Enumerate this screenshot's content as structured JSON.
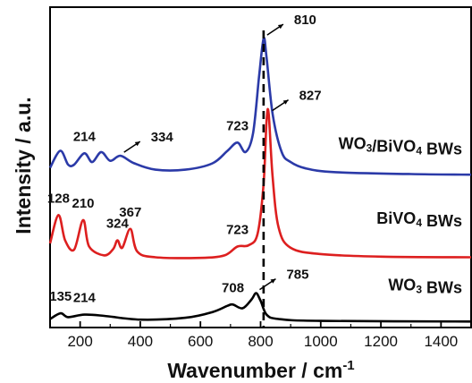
{
  "chart_data": {
    "type": "line",
    "xlabel": "Wavenumber / cm",
    "xlabel_sup": "-1",
    "ylabel": "Intensity / a.u.",
    "xlim": [
      100,
      1500
    ],
    "x_ticks": [
      200,
      400,
      600,
      800,
      1000,
      1200,
      1400
    ],
    "x_tick_labels": [
      "200",
      "400",
      "600",
      "800",
      "1000",
      "1200",
      "1400"
    ],
    "y_ticks_shown": false,
    "grid": false,
    "legend": "inline-labels-right",
    "reference_line": {
      "x": 810,
      "style": "dashed",
      "color": "#000000"
    },
    "series": [
      {
        "label_main": "WO",
        "label_sub": "3",
        "label_rest": " BWs",
        "color": "#000000",
        "baseline": 0.0,
        "scale": 1.0,
        "points": [
          [
            100,
            0.05
          ],
          [
            135,
            0.14
          ],
          [
            160,
            0.08
          ],
          [
            214,
            0.12
          ],
          [
            280,
            0.1
          ],
          [
            400,
            0.04
          ],
          [
            550,
            0.07
          ],
          [
            640,
            0.16
          ],
          [
            690,
            0.26
          ],
          [
            708,
            0.28
          ],
          [
            740,
            0.22
          ],
          [
            770,
            0.36
          ],
          [
            785,
            0.46
          ],
          [
            800,
            0.34
          ],
          [
            820,
            0.12
          ],
          [
            860,
            0.05
          ],
          [
            1000,
            0.02
          ],
          [
            1500,
            0.01
          ]
        ],
        "peak_labels": [
          {
            "x": 135,
            "text": "135"
          },
          {
            "x": 214,
            "text": "214"
          },
          {
            "x": 708,
            "text": "708"
          },
          {
            "x": 785,
            "text": "785",
            "arrow": true
          }
        ]
      },
      {
        "label_main": "BiVO",
        "label_sub": "4",
        "label_rest": " BWs",
        "color": "#dd1f1f",
        "baseline": 1.0,
        "scale": 1.0,
        "points": [
          [
            100,
            0.25
          ],
          [
            128,
            0.7
          ],
          [
            150,
            0.3
          ],
          [
            180,
            0.15
          ],
          [
            210,
            0.62
          ],
          [
            230,
            0.2
          ],
          [
            280,
            0.06
          ],
          [
            310,
            0.16
          ],
          [
            324,
            0.3
          ],
          [
            340,
            0.18
          ],
          [
            367,
            0.48
          ],
          [
            390,
            0.12
          ],
          [
            450,
            0.03
          ],
          [
            600,
            0.02
          ],
          [
            680,
            0.06
          ],
          [
            723,
            0.2
          ],
          [
            760,
            0.22
          ],
          [
            790,
            0.4
          ],
          [
            810,
            1.2
          ],
          [
            820,
            2.2
          ],
          [
            827,
            2.3
          ],
          [
            840,
            1.3
          ],
          [
            860,
            0.5
          ],
          [
            900,
            0.18
          ],
          [
            1000,
            0.08
          ],
          [
            1200,
            0.04
          ],
          [
            1500,
            0.03
          ]
        ],
        "peak_labels": [
          {
            "x": 128,
            "text": "128"
          },
          {
            "x": 210,
            "text": "210"
          },
          {
            "x": 324,
            "text": "324"
          },
          {
            "x": 367,
            "text": "367"
          },
          {
            "x": 723,
            "text": "723"
          },
          {
            "x": 827,
            "text": "827",
            "arrow": true
          }
        ]
      },
      {
        "label_main": "WO",
        "label_sub": "3",
        "label_mid": "/BiVO",
        "label_sub2": "4",
        "label_rest": " BWs",
        "color": "#2b3aa8",
        "baseline": 2.3,
        "scale": 1.0,
        "points": [
          [
            100,
            0.15
          ],
          [
            134,
            0.42
          ],
          [
            160,
            0.2
          ],
          [
            180,
            0.2
          ],
          [
            214,
            0.38
          ],
          [
            240,
            0.24
          ],
          [
            270,
            0.4
          ],
          [
            300,
            0.26
          ],
          [
            334,
            0.34
          ],
          [
            380,
            0.22
          ],
          [
            450,
            0.12
          ],
          [
            550,
            0.12
          ],
          [
            640,
            0.22
          ],
          [
            690,
            0.42
          ],
          [
            723,
            0.55
          ],
          [
            750,
            0.4
          ],
          [
            775,
            0.7
          ],
          [
            795,
            1.6
          ],
          [
            810,
            2.2
          ],
          [
            820,
            1.9
          ],
          [
            840,
            1.0
          ],
          [
            870,
            0.4
          ],
          [
            900,
            0.24
          ],
          [
            950,
            0.14
          ],
          [
            1050,
            0.08
          ],
          [
            1300,
            0.05
          ],
          [
            1500,
            0.04
          ]
        ],
        "peak_labels": [
          {
            "x": 214,
            "text": "214"
          },
          {
            "x": 334,
            "text": "334",
            "arrow": true
          },
          {
            "x": 723,
            "text": "723"
          },
          {
            "x": 810,
            "text": "810",
            "arrow": true
          }
        ]
      }
    ]
  }
}
